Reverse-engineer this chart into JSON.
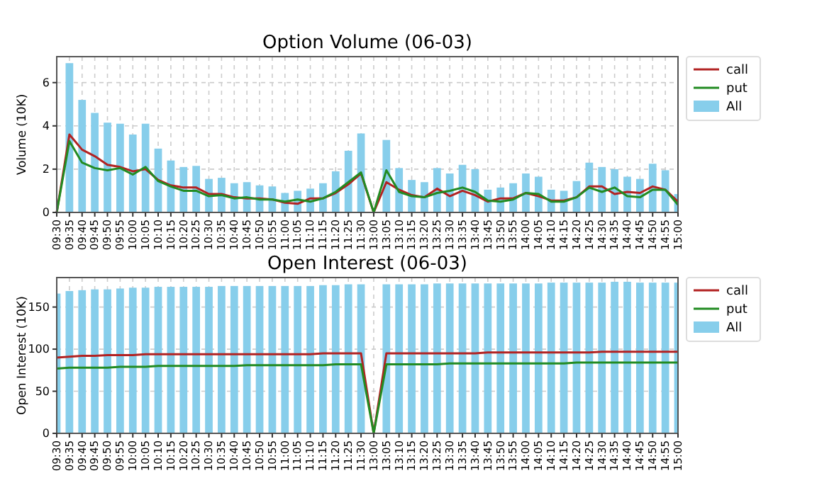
{
  "chart_data": [
    {
      "type": "bar",
      "title": "Option Volume (06-03)",
      "ylabel": "Volume (10K)",
      "categories": [
        "09:30",
        "09:35",
        "09:40",
        "09:45",
        "09:50",
        "09:55",
        "10:00",
        "10:05",
        "10:10",
        "10:15",
        "10:20",
        "10:25",
        "10:30",
        "10:35",
        "10:40",
        "10:45",
        "10:50",
        "10:55",
        "11:00",
        "11:05",
        "11:10",
        "11:15",
        "11:20",
        "11:25",
        "11:30",
        "13:00",
        "13:05",
        "13:10",
        "13:15",
        "13:20",
        "13:25",
        "13:30",
        "13:35",
        "13:40",
        "13:45",
        "13:50",
        "13:55",
        "14:00",
        "14:05",
        "14:10",
        "14:15",
        "14:20",
        "14:25",
        "14:30",
        "14:35",
        "14:40",
        "14:45",
        "14:50",
        "14:55",
        "15:00"
      ],
      "series": [
        {
          "name": "call",
          "type": "line",
          "color": "#b22222",
          "values": [
            0,
            3.6,
            2.9,
            2.6,
            2.2,
            2.1,
            1.9,
            2.0,
            1.5,
            1.25,
            1.15,
            1.15,
            0.85,
            0.85,
            0.7,
            0.65,
            0.65,
            0.6,
            0.45,
            0.4,
            0.65,
            0.65,
            0.9,
            1.3,
            1.8,
            0,
            1.4,
            1.05,
            0.8,
            0.7,
            1.1,
            0.75,
            1.0,
            0.8,
            0.5,
            0.65,
            0.65,
            0.9,
            0.75,
            0.55,
            0.55,
            0.7,
            1.2,
            1.2,
            0.85,
            0.95,
            0.9,
            1.2,
            1.05,
            0.5
          ]
        },
        {
          "name": "put",
          "type": "line",
          "color": "#228b22",
          "values": [
            0,
            3.3,
            2.3,
            2.05,
            1.95,
            2.05,
            1.75,
            2.1,
            1.45,
            1.2,
            1.0,
            1.0,
            0.75,
            0.8,
            0.65,
            0.7,
            0.6,
            0.6,
            0.5,
            0.6,
            0.5,
            0.65,
            0.95,
            1.4,
            1.85,
            0,
            1.95,
            0.95,
            0.75,
            0.7,
            0.9,
            1.0,
            1.15,
            0.95,
            0.55,
            0.5,
            0.6,
            0.9,
            0.85,
            0.5,
            0.5,
            0.7,
            1.15,
            0.95,
            1.15,
            0.75,
            0.7,
            1.05,
            1.05,
            0.35
          ]
        },
        {
          "name": "All",
          "color": "#87ceeb",
          "values": [
            0,
            6.9,
            5.2,
            4.6,
            4.15,
            4.1,
            3.6,
            4.1,
            2.95,
            2.4,
            2.1,
            2.15,
            1.55,
            1.6,
            1.35,
            1.4,
            1.25,
            1.2,
            0.9,
            1.0,
            1.1,
            1.35,
            1.9,
            2.85,
            3.65,
            0,
            3.35,
            2.05,
            1.5,
            1.4,
            2.05,
            1.8,
            2.2,
            2.0,
            1.05,
            1.15,
            1.35,
            1.8,
            1.65,
            1.05,
            1.0,
            1.45,
            2.3,
            2.1,
            2.0,
            1.65,
            1.55,
            2.25,
            1.95,
            0.85
          ]
        }
      ],
      "ylim": [
        0,
        7.2
      ],
      "yticks": [
        0,
        2,
        4,
        6
      ],
      "grid": true,
      "legend": "top right"
    },
    {
      "type": "bar",
      "title": "Open Interest (06-03)",
      "ylabel": "Open Interest (10K)",
      "categories": [
        "09:30",
        "09:35",
        "09:40",
        "09:45",
        "09:50",
        "09:55",
        "10:00",
        "10:05",
        "10:10",
        "10:15",
        "10:20",
        "10:25",
        "10:30",
        "10:35",
        "10:40",
        "10:45",
        "10:50",
        "10:55",
        "11:00",
        "11:05",
        "11:10",
        "11:15",
        "11:20",
        "11:25",
        "11:30",
        "13:00",
        "13:05",
        "13:10",
        "13:15",
        "13:20",
        "13:25",
        "13:30",
        "13:35",
        "13:40",
        "13:45",
        "13:50",
        "13:55",
        "14:00",
        "14:05",
        "14:10",
        "14:15",
        "14:20",
        "14:25",
        "14:30",
        "14:35",
        "14:40",
        "14:45",
        "14:50",
        "14:55",
        "15:00"
      ],
      "series": [
        {
          "name": "call",
          "type": "line",
          "color": "#b22222",
          "values": [
            90,
            91,
            92,
            92,
            93,
            93,
            93,
            94,
            94,
            94,
            94,
            94,
            94,
            94,
            94,
            94,
            94,
            94,
            94,
            94,
            94,
            95,
            95,
            95,
            95,
            0,
            95,
            95,
            95,
            95,
            95,
            95,
            95,
            95,
            96,
            96,
            96,
            96,
            96,
            96,
            96,
            96,
            96,
            97,
            97,
            97,
            97,
            97,
            97,
            97
          ]
        },
        {
          "name": "put",
          "type": "line",
          "color": "#228b22",
          "values": [
            77,
            78,
            78,
            78,
            78,
            79,
            79,
            79,
            80,
            80,
            80,
            80,
            80,
            80,
            80,
            81,
            81,
            81,
            81,
            81,
            81,
            81,
            82,
            82,
            82,
            0,
            82,
            82,
            82,
            82,
            82,
            83,
            83,
            83,
            83,
            83,
            83,
            83,
            83,
            83,
            83,
            84,
            84,
            84,
            84,
            84,
            84,
            84,
            84,
            84
          ]
        },
        {
          "name": "All",
          "color": "#87ceeb",
          "values": [
            166,
            169,
            170,
            171,
            171,
            172,
            173,
            173,
            174,
            174,
            174,
            174,
            174,
            175,
            175,
            175,
            175,
            175,
            175,
            175,
            175,
            176,
            176,
            177,
            177,
            0,
            177,
            177,
            177,
            177,
            178,
            178,
            178,
            178,
            178,
            178,
            178,
            178,
            178,
            179,
            179,
            179,
            179,
            179,
            180,
            180,
            179,
            179,
            179,
            179
          ]
        }
      ],
      "ylim": [
        0,
        185
      ],
      "yticks": [
        0,
        50,
        100,
        150
      ],
      "grid": true,
      "legend": "top right"
    }
  ]
}
